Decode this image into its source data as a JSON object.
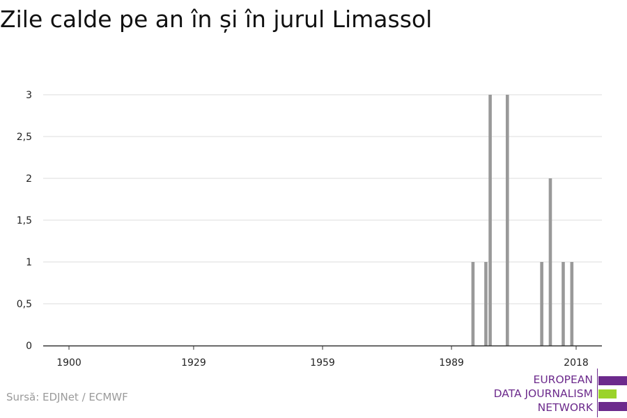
{
  "title": "Zile calde pe an în și în jurul Limassol",
  "source": "Sursă: EDJNet / ECMWF",
  "logo": {
    "lines": [
      "EUROPEAN",
      "DATA JOURNALISM",
      "NETWORK"
    ],
    "colors": {
      "purple": "#6c2a8c",
      "green": "#9bd32a"
    }
  },
  "chart_data": {
    "type": "bar",
    "title": "Zile calde pe an în și în jurul Limassol",
    "xlabel": "",
    "ylabel": "",
    "xlim": [
      1894,
      2024
    ],
    "ylim": [
      0,
      3
    ],
    "x_ticks": [
      1900,
      1929,
      1959,
      1989,
      2018
    ],
    "y_ticks": [
      {
        "value": 0,
        "label": "0"
      },
      {
        "value": 0.5,
        "label": "0,5"
      },
      {
        "value": 1,
        "label": "1"
      },
      {
        "value": 1.5,
        "label": "1,5"
      },
      {
        "value": 2,
        "label": "2"
      },
      {
        "value": 2.5,
        "label": "2,5"
      },
      {
        "value": 3,
        "label": "3"
      }
    ],
    "grid": true,
    "bar_color": "#999999",
    "points": [
      {
        "x": 1994,
        "y": 1
      },
      {
        "x": 1997,
        "y": 1
      },
      {
        "x": 1998,
        "y": 3
      },
      {
        "x": 2002,
        "y": 3
      },
      {
        "x": 2010,
        "y": 1
      },
      {
        "x": 2012,
        "y": 2
      },
      {
        "x": 2015,
        "y": 1
      },
      {
        "x": 2017,
        "y": 1
      }
    ]
  }
}
